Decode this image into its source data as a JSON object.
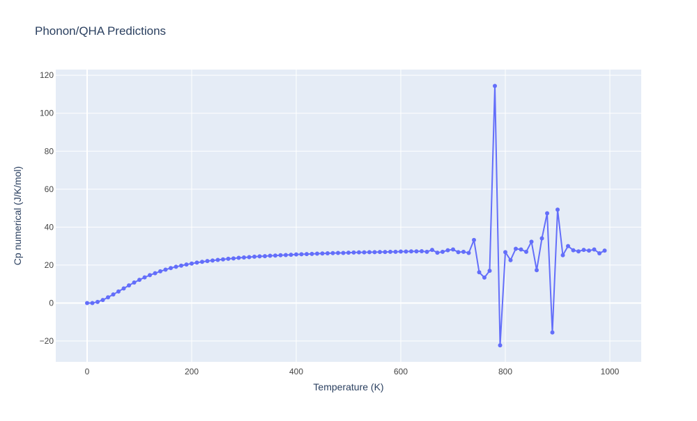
{
  "colors": {
    "plot_bg": "#e5ecf6",
    "grid": "#ffffff",
    "series": "#636efa",
    "text": "#2a3f5f",
    "tick_text": "#444444"
  },
  "chart_data": {
    "type": "line",
    "title": "Phonon/QHA Predictions",
    "xlabel": "Temperature (K)",
    "ylabel": "Cp numerical (J/K/mol)",
    "xlim": [
      -60,
      1060
    ],
    "ylim": [
      -31,
      123
    ],
    "xticks": [
      0,
      200,
      400,
      600,
      800,
      1000
    ],
    "yticks": [
      -20,
      0,
      20,
      40,
      60,
      80,
      100,
      120
    ],
    "grid": true,
    "mode": "lines+markers",
    "series": [
      {
        "x": [
          0,
          10,
          20,
          30,
          40,
          50,
          60,
          70,
          80,
          90,
          100,
          110,
          120,
          130,
          140,
          150,
          160,
          170,
          180,
          190,
          200,
          210,
          220,
          230,
          240,
          250,
          260,
          270,
          280,
          290,
          300,
          310,
          320,
          330,
          340,
          350,
          360,
          370,
          380,
          390,
          400,
          410,
          420,
          430,
          440,
          450,
          460,
          470,
          480,
          490,
          500,
          510,
          520,
          530,
          540,
          550,
          560,
          570,
          580,
          590,
          600,
          610,
          620,
          630,
          640,
          650,
          660,
          670,
          680,
          690,
          700,
          710,
          720,
          730,
          740,
          750,
          760,
          770,
          780,
          790,
          800,
          810,
          820,
          830,
          840,
          850,
          860,
          870,
          880,
          890,
          900,
          910,
          920,
          930,
          940,
          950,
          960,
          970,
          980,
          990
        ],
        "y": [
          0,
          0,
          0.6,
          1.6,
          3.0,
          4.5,
          6.1,
          7.7,
          9.3,
          10.8,
          12.2,
          13.5,
          14.7,
          15.7,
          16.7,
          17.6,
          18.4,
          19.1,
          19.7,
          20.3,
          20.8,
          21.3,
          21.7,
          22.1,
          22.4,
          22.7,
          23.0,
          23.3,
          23.5,
          23.8,
          24.0,
          24.2,
          24.4,
          24.6,
          24.7,
          24.9,
          25.0,
          25.2,
          25.3,
          25.4,
          25.6,
          25.7,
          25.8,
          25.9,
          26.0,
          26.1,
          26.2,
          26.3,
          26.4,
          26.4,
          26.5,
          26.6,
          26.7,
          26.7,
          26.8,
          26.8,
          26.9,
          26.9,
          27.0,
          27.0,
          27.1,
          27.1,
          27.2,
          27.2,
          27.3,
          27.0,
          28.0,
          26.5,
          27.0,
          27.8,
          28.2,
          26.8,
          27.0,
          26.4,
          33.2,
          16.2,
          13.4,
          17.0,
          114.4,
          -22.3,
          26.8,
          22.6,
          28.6,
          28.2,
          27.0,
          32.3,
          17.3,
          34.1,
          47.3,
          -15.5,
          49.2,
          25.2,
          30.0,
          27.8,
          27.2,
          28.0,
          27.6,
          28.2,
          26.2,
          27.6
        ]
      }
    ]
  }
}
